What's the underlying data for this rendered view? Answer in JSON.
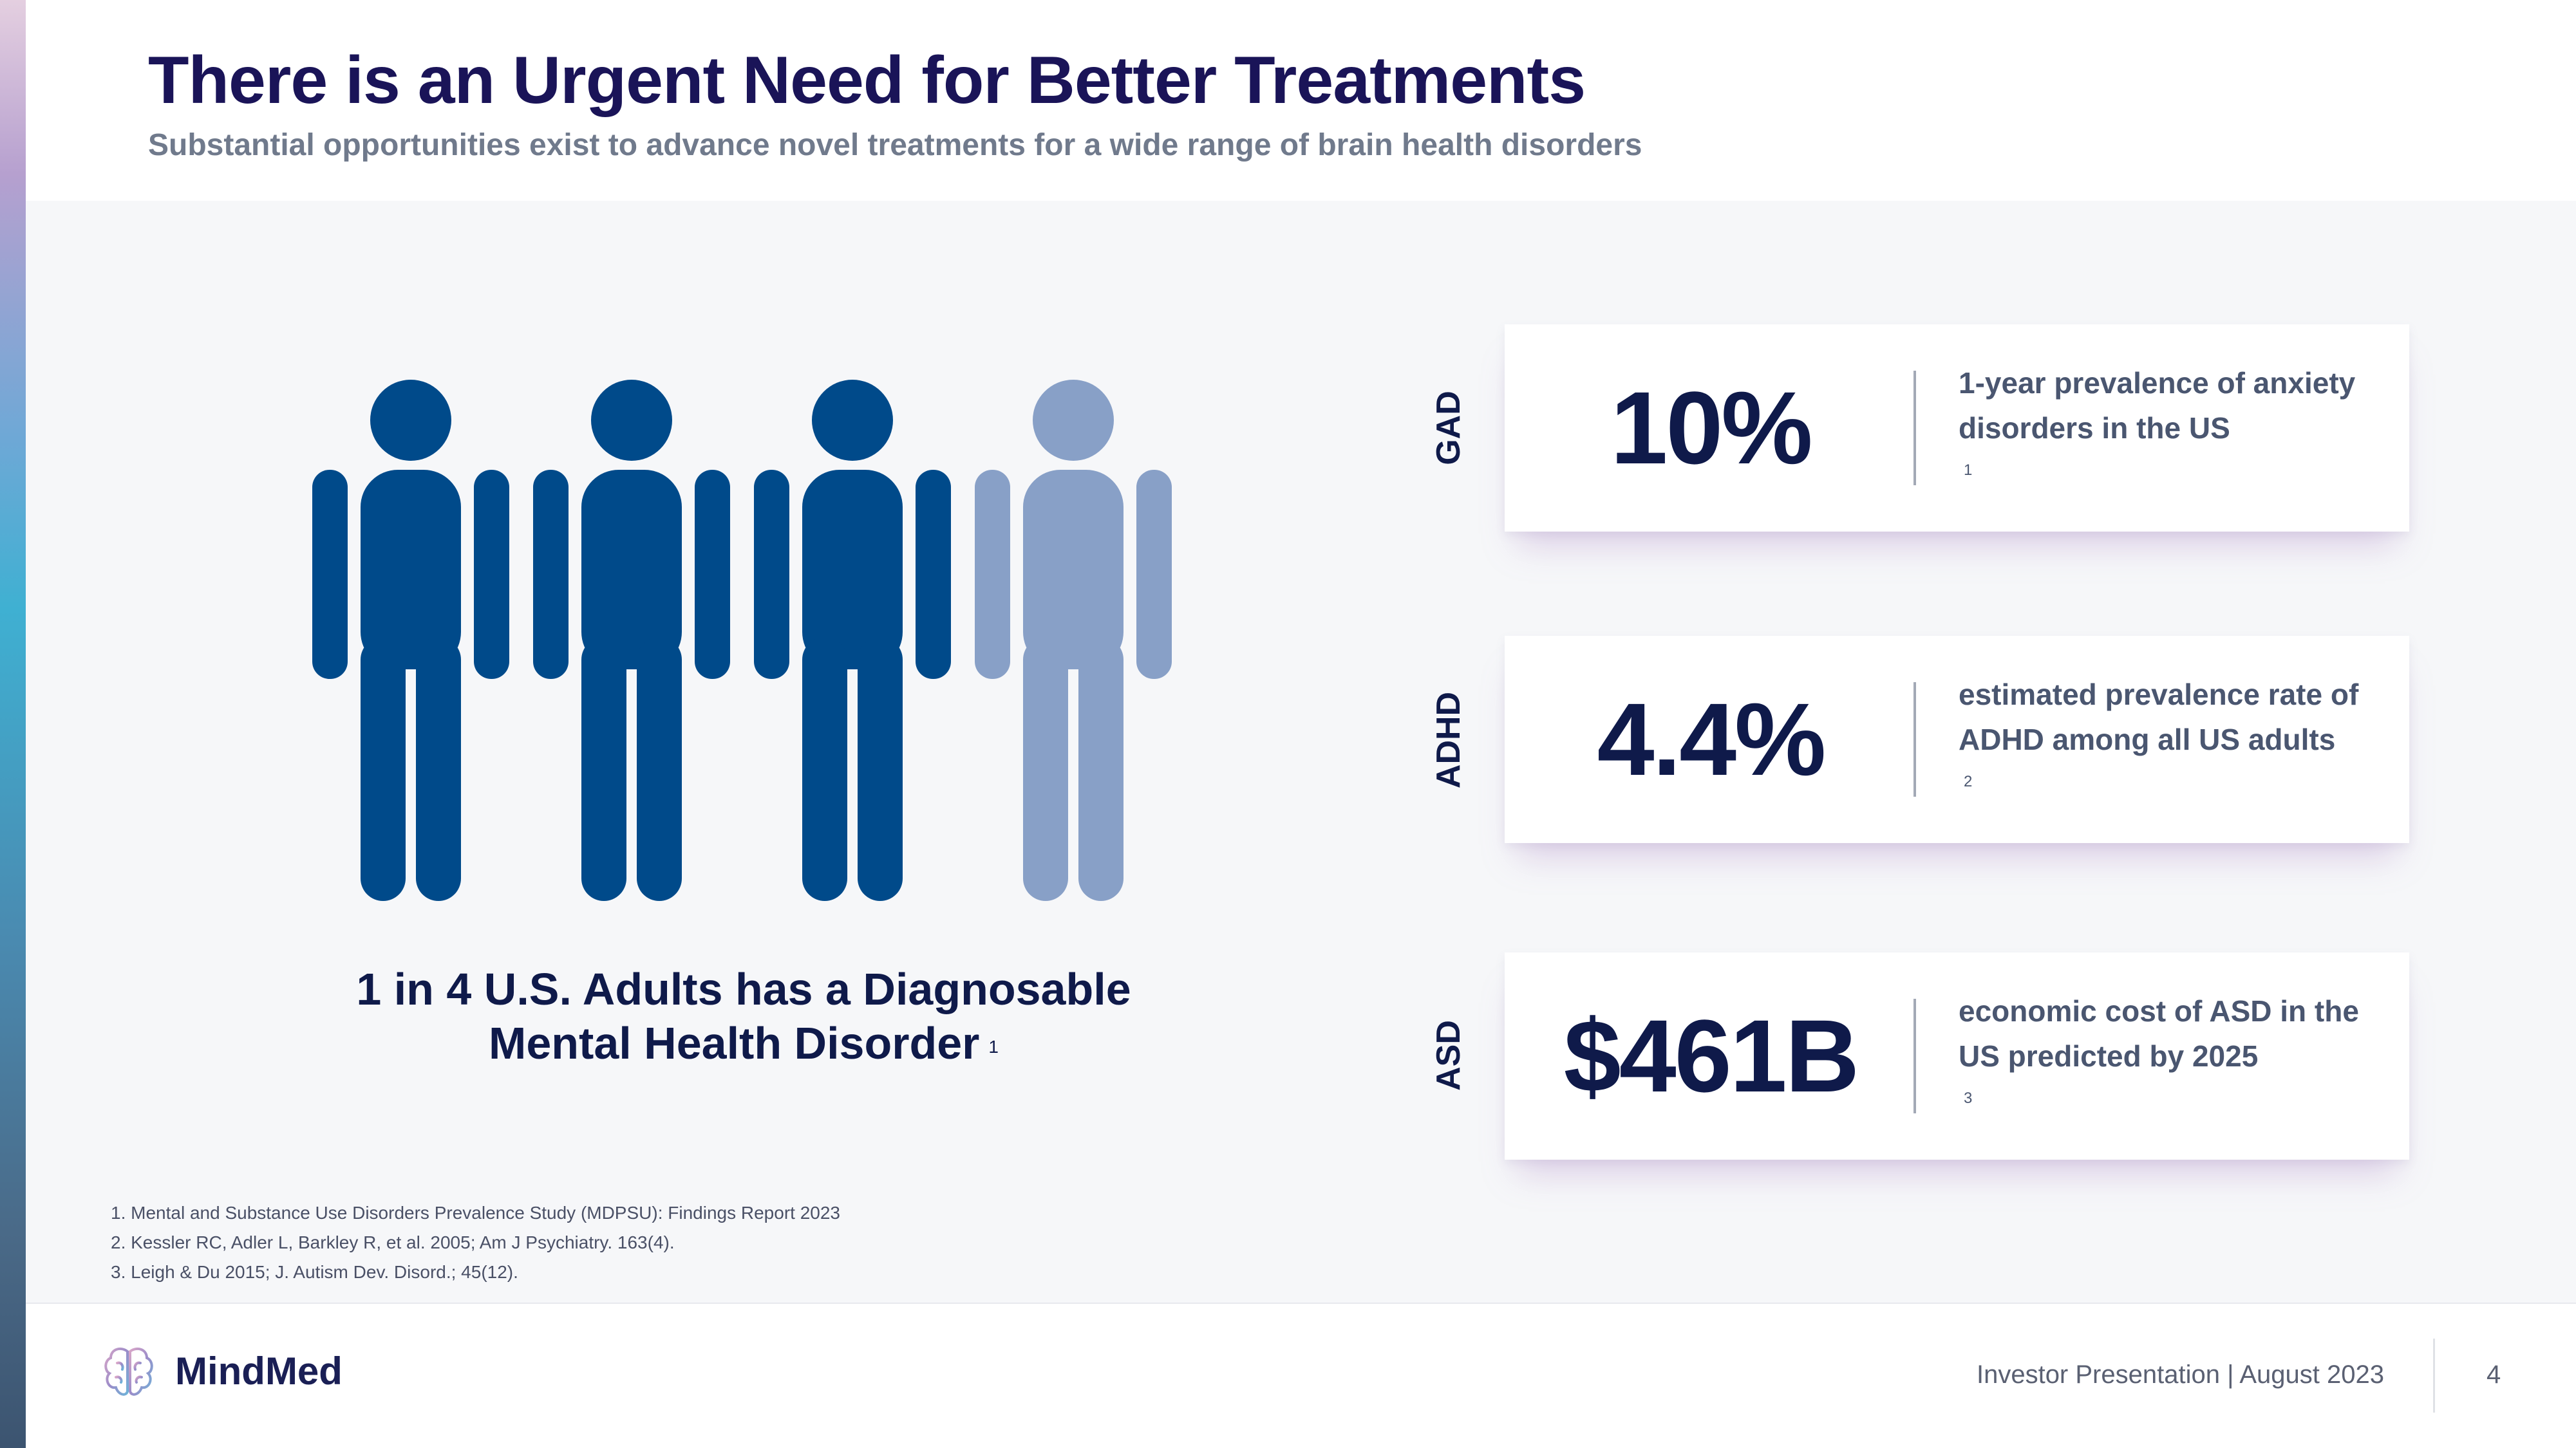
{
  "header": {
    "title": "There is an Urgent Need for Better Treatments",
    "subtitle": "Substantial opportunities exist to advance novel treatments for a wide range of brain health disorders"
  },
  "figures": {
    "total": 4,
    "highlighted": 3,
    "colors": {
      "highlight": "#004a8a",
      "muted": "#88a0c7"
    },
    "caption_line1": "1 in 4 U.S. Adults has a Diagnosable",
    "caption_line2": "Mental Health Disorder",
    "caption_ref": "1"
  },
  "stats": [
    {
      "category": "GAD",
      "value": "10%",
      "desc_line1": "1-year prevalence of anxiety",
      "desc_line2": "disorders in the US",
      "ref": "1"
    },
    {
      "category": "ADHD",
      "value": "4.4%",
      "desc_line1": "estimated prevalence rate of",
      "desc_line2": "ADHD among all US adults",
      "ref": "2"
    },
    {
      "category": "ASD",
      "value": "$461B",
      "desc_line1": "economic cost of ASD in the",
      "desc_line2": "US predicted by 2025",
      "ref": "3"
    }
  ],
  "footnotes": [
    "1. Mental and Substance Use Disorders Prevalence Study (MDPSU): Findings Report 2023",
    "2. Kessler RC, Adler L, Barkley R, et al. 2005; Am J Psychiatry. 163(4).",
    "3. Leigh & Du 2015; J. Autism Dev. Disord.; 45(12)."
  ],
  "footer": {
    "brand": "MindMed",
    "presentation": "Investor Presentation | August 2023",
    "page": "4"
  }
}
